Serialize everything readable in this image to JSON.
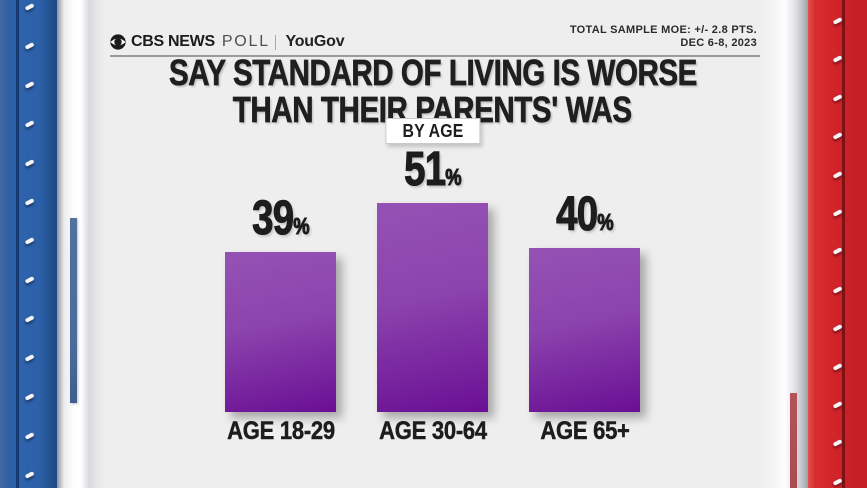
{
  "header": {
    "brand": {
      "cbs": "CBS NEWS",
      "poll": "POLL",
      "partner": "YouGov"
    },
    "moe_line1": "TOTAL SAMPLE MOE: +/- 2.8 PTS.",
    "moe_line2": "DEC 6-8, 2023"
  },
  "title": {
    "line1": "SAY STANDARD OF LIVING IS WORSE",
    "line2": "THAN THEIR PARENTS' WAS"
  },
  "badge": "BY AGE",
  "chart_data": {
    "type": "bar",
    "title": "SAY STANDARD OF LIVING IS WORSE THAN THEIR PARENTS' WAS",
    "subtitle": "BY AGE",
    "categories": [
      "AGE 18-29",
      "AGE 30-64",
      "AGE 65+"
    ],
    "values": [
      39,
      51,
      40
    ],
    "value_suffix": "%",
    "xlabel": "",
    "ylabel": "",
    "ylim": [
      0,
      60
    ],
    "grid": false,
    "legend": false,
    "bar_color_top": "#9552b4",
    "bar_color_mid": "#8b43ad",
    "bar_color_bottom": "#6a0f94"
  },
  "colors": {
    "background": "#efeeef",
    "text": "#1d1d1d",
    "left_spine_blue": "#2e63ac",
    "right_spine_red": "#d2242a",
    "bar_purple": "#8b43ad"
  },
  "icons": {
    "cbs_eye": "cbs-eye-icon"
  }
}
